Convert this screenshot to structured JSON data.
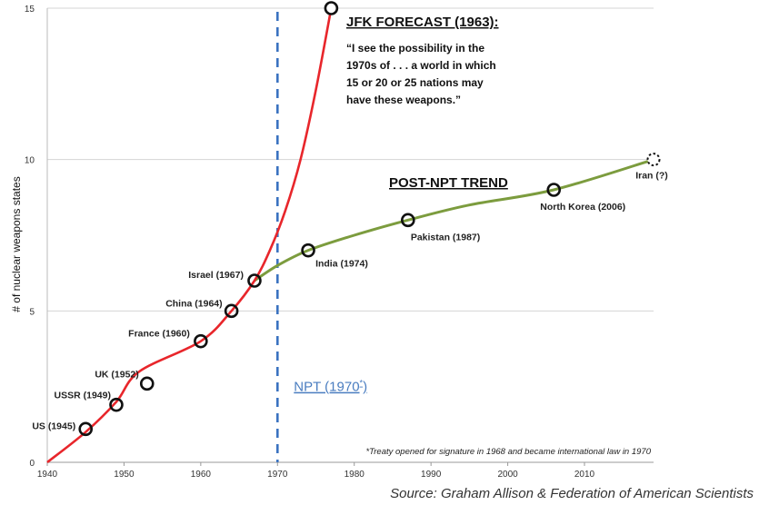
{
  "chart_data": {
    "type": "line",
    "xlim": [
      1940,
      2019
    ],
    "ylim": [
      0,
      15
    ],
    "x_ticks": [
      1940,
      1950,
      1960,
      1970,
      1980,
      1990,
      2000,
      2010
    ],
    "y_ticks": [
      0,
      5,
      10,
      15
    ],
    "ylabel": "# of nuclear weapons states",
    "grid": "horizontal",
    "series": [
      {
        "name": "JFK FORECAST (1963):",
        "color": "#e8262b",
        "x": [
          1940,
          1945,
          1949,
          1952,
          1960,
          1964,
          1967,
          1969,
          1971,
          1973,
          1975,
          1977
        ],
        "y": [
          0,
          1,
          2,
          3,
          4,
          5,
          6,
          7,
          8.3,
          10,
          12.3,
          15
        ]
      },
      {
        "name": "POST-NPT TREND",
        "color": "#7c9c3e",
        "x": [
          1967,
          1970,
          1974,
          1980,
          1987,
          1995,
          2006,
          2019
        ],
        "y": [
          6,
          6.5,
          7,
          7.5,
          8,
          8.5,
          9,
          10
        ]
      }
    ],
    "points": [
      {
        "label": "US (1945)",
        "x": 1945,
        "y": 1.1
      },
      {
        "label": "USSR (1949)",
        "x": 1949,
        "y": 1.9
      },
      {
        "label": "UK (1952)",
        "x": 1953,
        "y": 2.6
      },
      {
        "label": "France (1960)",
        "x": 1960,
        "y": 4
      },
      {
        "label": "China (1964)",
        "x": 1964,
        "y": 5
      },
      {
        "label": "Israel (1967)",
        "x": 1967,
        "y": 6
      },
      {
        "label": "India (1974)",
        "x": 1974,
        "y": 7
      },
      {
        "label": "Pakistan (1987)",
        "x": 1987,
        "y": 8
      },
      {
        "label": "North Korea (2006)",
        "x": 2006,
        "y": 9
      },
      {
        "label": "Iran (?)",
        "x": 2019,
        "y": 10,
        "dashed": true
      }
    ],
    "forecast_end_x": 1977,
    "forecast_end_y": 15,
    "npt_line": {
      "x": 1970,
      "label": "NPT (1970",
      "label_sup": "*",
      "label_close": ")",
      "color": "#3a72c0"
    },
    "annotations": {
      "jfk_title": "JFK FORECAST (1963):",
      "jfk_quote": [
        "“I see the possibility in the",
        "1970s of  . . . a world in which",
        "15 or 20 or 25 nations may",
        "have these weapons.”"
      ],
      "post_npt_title": "POST-NPT TREND",
      "footnote": "*Treaty opened for signature in 1968  and became international law in 1970"
    }
  },
  "source": "Source: Graham Allison & Federation of American Scientists"
}
